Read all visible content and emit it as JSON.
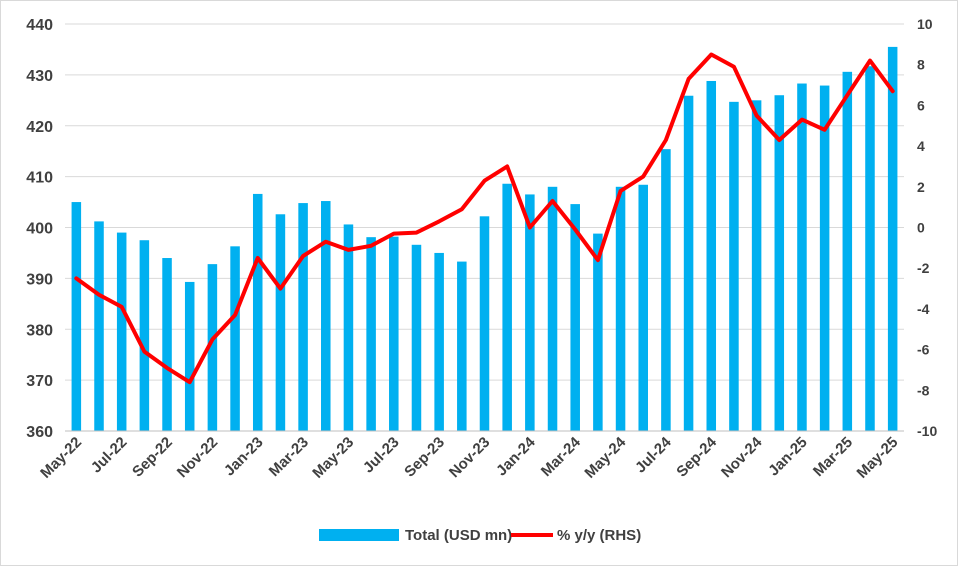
{
  "chart_data": {
    "type": "bar+line",
    "categories": [
      "May-22",
      "Jun-22",
      "Jul-22",
      "Aug-22",
      "Sep-22",
      "Oct-22",
      "Nov-22",
      "Dec-22",
      "Jan-23",
      "Feb-23",
      "Mar-23",
      "Apr-23",
      "May-23",
      "Jun-23",
      "Jul-23",
      "Aug-23",
      "Sep-23",
      "Oct-23",
      "Nov-23",
      "Dec-23",
      "Jan-24",
      "Feb-24",
      "Mar-24",
      "Apr-24",
      "May-24",
      "Jun-24",
      "Jul-24",
      "Aug-24",
      "Sep-24",
      "Oct-24",
      "Nov-24",
      "Dec-24",
      "Jan-25",
      "Feb-25",
      "Mar-25",
      "Apr-25",
      "May-25"
    ],
    "tick_labels": [
      "May-22",
      "Jul-22",
      "Sep-22",
      "Nov-22",
      "Jan-23",
      "Mar-23",
      "May-23",
      "Jul-23",
      "Sep-23",
      "Nov-23",
      "Jan-24",
      "Mar-24",
      "May-24",
      "Jul-24",
      "Sep-24",
      "Nov-24",
      "Jan-25",
      "Mar-25",
      "May-25"
    ],
    "series": [
      {
        "name": "Total (USD mn)",
        "type": "bar",
        "axis": "left",
        "color": "#00b0f0",
        "values": [
          405.0,
          401.2,
          399.0,
          397.5,
          394.0,
          389.3,
          392.8,
          396.3,
          406.6,
          402.6,
          404.8,
          405.2,
          400.6,
          398.1,
          398.2,
          396.6,
          395.0,
          393.3,
          402.2,
          408.6,
          406.5,
          408.0,
          404.6,
          398.8,
          408.0,
          408.4,
          415.4,
          425.9,
          428.8,
          424.7,
          425.0,
          426.0,
          428.3,
          427.9,
          430.6,
          431.7,
          435.5
        ]
      },
      {
        "name": "% y/y (RHS)",
        "type": "line",
        "axis": "right",
        "color": "#ff0000",
        "values": [
          -2.5,
          -3.3,
          -3.9,
          -6.1,
          -6.9,
          -7.6,
          -5.5,
          -4.3,
          -1.5,
          -3.0,
          -1.4,
          -0.7,
          -1.1,
          -0.9,
          -0.3,
          -0.25,
          0.3,
          0.9,
          2.3,
          3.0,
          0.0,
          1.3,
          -0.1,
          -1.6,
          1.8,
          2.5,
          4.3,
          7.3,
          8.5,
          7.9,
          5.5,
          4.3,
          5.3,
          4.8,
          6.5,
          8.2,
          6.7
        ]
      }
    ],
    "left_axis": {
      "min": 360,
      "max": 440,
      "step": 10,
      "labels": [
        "360",
        "370",
        "380",
        "390",
        "400",
        "410",
        "420",
        "430",
        "440"
      ]
    },
    "right_axis": {
      "min": -10,
      "max": 10,
      "step": 2,
      "labels": [
        "-10",
        "-8",
        "-6",
        "-4",
        "-2",
        "0",
        "2",
        "4",
        "6",
        "8",
        "10"
      ]
    },
    "grid": "horizontal",
    "legend": {
      "position": "bottom",
      "entries": [
        {
          "label": "Total (USD mn)",
          "swatch": "bar",
          "color": "#00b0f0"
        },
        {
          "label": "% y/y (RHS)",
          "swatch": "line",
          "color": "#ff0000"
        }
      ]
    }
  }
}
